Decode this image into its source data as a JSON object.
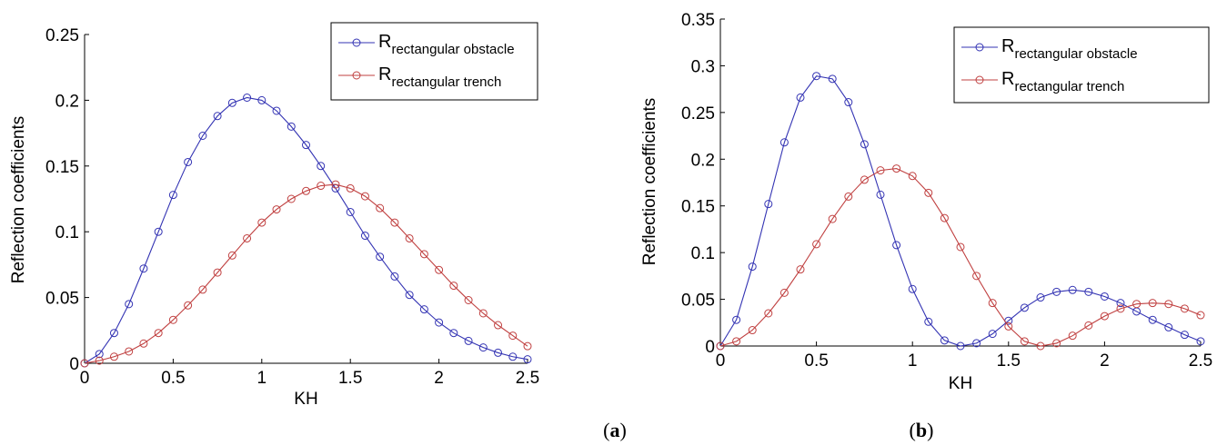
{
  "chart_data": [
    {
      "type": "line",
      "panel_label": "a",
      "xlabel": "KH",
      "ylabel": "Reflection coefficients",
      "xlim": [
        0,
        2.5
      ],
      "ylim": [
        0,
        0.25
      ],
      "xticks": [
        "0",
        "0.5",
        "1",
        "1.5",
        "2",
        "2.5"
      ],
      "yticks": [
        "0",
        "0.05",
        "0.1",
        "0.15",
        "0.2",
        "0.25"
      ],
      "grid": false,
      "legend_position": "top-right",
      "x": [
        0,
        0.0833,
        0.1667,
        0.25,
        0.3333,
        0.4167,
        0.5,
        0.5833,
        0.6667,
        0.75,
        0.8333,
        0.9167,
        1,
        1.0833,
        1.1667,
        1.25,
        1.3333,
        1.4167,
        1.5,
        1.5833,
        1.6667,
        1.75,
        1.8333,
        1.9167,
        2,
        2.0833,
        2.1667,
        2.25,
        2.3333,
        2.4167,
        2.5
      ],
      "series": [
        {
          "name_main": "R",
          "name_sub": "rectangular obstacle",
          "color": "#3333b3",
          "values": [
            0,
            0.007,
            0.023,
            0.045,
            0.072,
            0.1,
            0.128,
            0.153,
            0.173,
            0.188,
            0.198,
            0.202,
            0.2,
            0.192,
            0.18,
            0.166,
            0.15,
            0.133,
            0.115,
            0.097,
            0.081,
            0.066,
            0.052,
            0.041,
            0.031,
            0.023,
            0.017,
            0.012,
            0.008,
            0.005,
            0.003
          ]
        },
        {
          "name_main": "R",
          "name_sub": "rectangular trench",
          "color": "#c04040",
          "values": [
            0,
            0.002,
            0.005,
            0.009,
            0.015,
            0.023,
            0.033,
            0.044,
            0.056,
            0.069,
            0.082,
            0.095,
            0.107,
            0.117,
            0.125,
            0.131,
            0.135,
            0.136,
            0.133,
            0.127,
            0.118,
            0.107,
            0.095,
            0.083,
            0.071,
            0.059,
            0.048,
            0.038,
            0.029,
            0.021,
            0.013
          ]
        }
      ]
    },
    {
      "type": "line",
      "panel_label": "b",
      "xlabel": "KH",
      "ylabel": "Reflection coefficients",
      "xlim": [
        0,
        2.5
      ],
      "ylim": [
        0,
        0.35
      ],
      "xticks": [
        "0",
        "0.5",
        "1",
        "1.5",
        "2",
        "2.5"
      ],
      "yticks": [
        "0",
        "0.05",
        "0.1",
        "0.15",
        "0.2",
        "0.25",
        "0.3",
        "0.35"
      ],
      "grid": false,
      "legend_position": "top-right",
      "x": [
        0,
        0.0833,
        0.1667,
        0.25,
        0.3333,
        0.4167,
        0.5,
        0.5833,
        0.6667,
        0.75,
        0.8333,
        0.9167,
        1,
        1.0833,
        1.1667,
        1.25,
        1.3333,
        1.4167,
        1.5,
        1.5833,
        1.6667,
        1.75,
        1.8333,
        1.9167,
        2,
        2.0833,
        2.1667,
        2.25,
        2.3333,
        2.4167,
        2.5
      ],
      "series": [
        {
          "name_main": "R",
          "name_sub": "rectangular obstacle",
          "color": "#3333b3",
          "values": [
            0,
            0.028,
            0.085,
            0.152,
            0.218,
            0.266,
            0.289,
            0.286,
            0.261,
            0.216,
            0.162,
            0.108,
            0.061,
            0.026,
            0.006,
            0,
            0.003,
            0.013,
            0.027,
            0.041,
            0.052,
            0.058,
            0.06,
            0.058,
            0.053,
            0.046,
            0.037,
            0.028,
            0.02,
            0.012,
            0.005
          ]
        },
        {
          "name_main": "R",
          "name_sub": "rectangular trench",
          "color": "#c04040",
          "values": [
            0,
            0.005,
            0.017,
            0.035,
            0.057,
            0.082,
            0.109,
            0.136,
            0.16,
            0.178,
            0.188,
            0.19,
            0.182,
            0.164,
            0.137,
            0.106,
            0.075,
            0.046,
            0.021,
            0.005,
            0,
            0.003,
            0.011,
            0.022,
            0.032,
            0.04,
            0.045,
            0.046,
            0.045,
            0.04,
            0.033
          ]
        }
      ]
    }
  ],
  "captions": [
    {
      "open": "(",
      "letter": "a",
      "close": ")"
    },
    {
      "open": "(",
      "letter": "b",
      "close": ")"
    }
  ]
}
